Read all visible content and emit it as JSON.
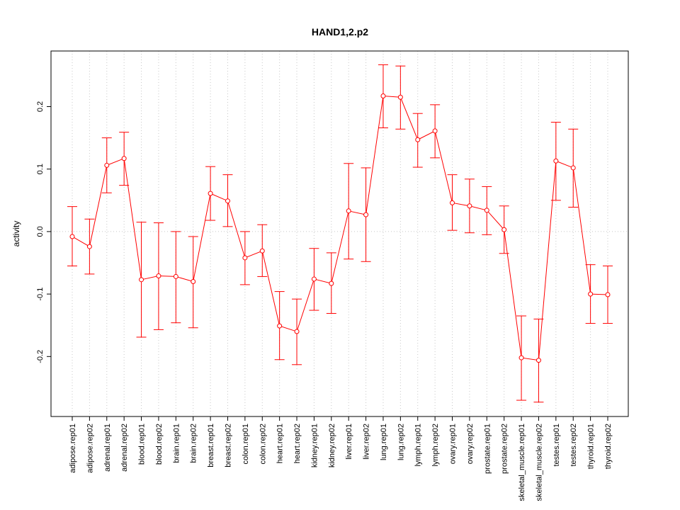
{
  "chart_data": {
    "type": "line",
    "title": "HAND1,2.p2",
    "xlabel": "",
    "ylabel": "activity",
    "ylim": [
      -0.296,
      0.289
    ],
    "yticks": [
      -0.2,
      -0.1,
      0.0,
      0.1,
      0.2
    ],
    "ytick_labels": [
      "-0.2",
      "-0.1",
      "0.0",
      "0.1",
      "0.2"
    ],
    "grid": "dotted vertical at each category, dotted horizontal at 0",
    "color": "#ff0000",
    "categories": [
      "adipose.rep01",
      "adipose.rep02",
      "adrenal.rep01",
      "adrenal.rep02",
      "blood.rep01",
      "blood.rep02",
      "brain.rep01",
      "brain.rep02",
      "breast.rep01",
      "breast.rep02",
      "colon.rep01",
      "colon.rep02",
      "heart.rep01",
      "heart.rep02",
      "kidney.rep01",
      "kidney.rep02",
      "liver.rep01",
      "liver.rep02",
      "lung.rep01",
      "lung.rep02",
      "lymph.rep01",
      "lymph.rep02",
      "ovary.rep01",
      "ovary.rep02",
      "prostate.rep01",
      "prostate.rep02",
      "skeletal_muscle.rep01",
      "skeletal_muscle.rep02",
      "testes.rep01",
      "testes.rep02",
      "thyroid.rep01",
      "thyroid.rep02"
    ],
    "values": [
      -0.008,
      -0.024,
      0.106,
      0.117,
      -0.077,
      -0.071,
      -0.072,
      -0.08,
      0.061,
      0.049,
      -0.042,
      -0.031,
      -0.151,
      -0.16,
      -0.076,
      -0.083,
      0.033,
      0.027,
      0.217,
      0.215,
      0.147,
      0.161,
      0.046,
      0.041,
      0.034,
      0.003,
      -0.202,
      -0.206,
      0.113,
      0.102,
      -0.1,
      -0.101
    ],
    "upper": [
      0.04,
      0.02,
      0.15,
      0.159,
      0.015,
      0.014,
      0.0,
      -0.008,
      0.104,
      0.091,
      0.0,
      0.011,
      -0.096,
      -0.108,
      -0.027,
      -0.034,
      0.109,
      0.102,
      0.267,
      0.265,
      0.189,
      0.203,
      0.091,
      0.084,
      0.072,
      0.041,
      -0.135,
      -0.14,
      0.175,
      0.164,
      -0.053,
      -0.055
    ],
    "lower": [
      -0.055,
      -0.068,
      0.062,
      0.074,
      -0.169,
      -0.157,
      -0.146,
      -0.154,
      0.018,
      0.008,
      -0.085,
      -0.072,
      -0.205,
      -0.213,
      -0.126,
      -0.131,
      -0.044,
      -0.048,
      0.166,
      0.164,
      0.103,
      0.118,
      0.002,
      -0.002,
      -0.005,
      -0.035,
      -0.27,
      -0.273,
      0.05,
      0.039,
      -0.147,
      -0.147
    ]
  }
}
